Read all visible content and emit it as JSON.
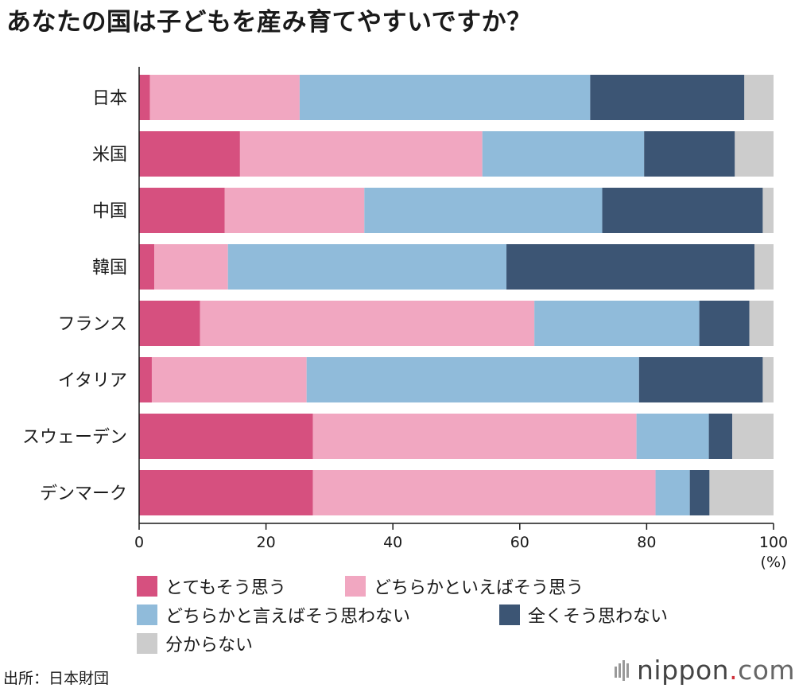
{
  "title": "あなたの国は子どもを産み育てやすいですか？",
  "chart_data": {
    "type": "bar",
    "orientation": "horizontal",
    "stacked": true,
    "title": "あなたの国は子どもを産み育てやすいですか？",
    "categories": [
      "日本",
      "米国",
      "中国",
      "韓国",
      "フランス",
      "イタリア",
      "スウェーデン",
      "デンマーク"
    ],
    "series": [
      {
        "name": "とてもそう思う",
        "color": "#d6507f",
        "values": [
          1.7,
          15.9,
          13.5,
          2.4,
          9.6,
          2.0,
          27.4,
          27.4
        ]
      },
      {
        "name": "どちらかといえばそう思う",
        "color": "#f1a7c1",
        "values": [
          23.6,
          38.2,
          22.0,
          11.6,
          52.7,
          24.4,
          51.0,
          54.0
        ]
      },
      {
        "name": "どちらかと言えばそう思わない",
        "color": "#90bbda",
        "values": [
          45.8,
          25.5,
          37.5,
          43.9,
          26.0,
          52.4,
          11.4,
          5.4
        ]
      },
      {
        "name": "全くそう思わない",
        "color": "#3c5574",
        "values": [
          24.3,
          14.3,
          25.3,
          39.1,
          7.9,
          19.5,
          3.7,
          3.1
        ]
      },
      {
        "name": "分からない",
        "color": "#cccccc",
        "values": [
          4.6,
          6.1,
          1.7,
          3.0,
          3.8,
          1.7,
          6.5,
          10.1
        ]
      }
    ],
    "xlim": [
      0,
      100
    ],
    "xticks": [
      0,
      20,
      40,
      60,
      80,
      100
    ],
    "xunit": "(%)",
    "legend_position": "bottom"
  },
  "source": "出所：日本財団",
  "logo": {
    "name": "nippon",
    "dot": ".",
    "suffix": "com"
  }
}
